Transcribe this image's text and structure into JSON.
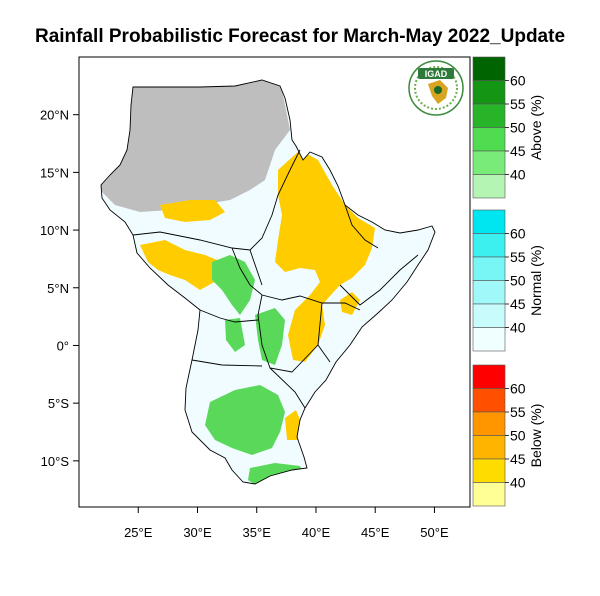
{
  "title": "Rainfall Probabilistic Forecast for March-May 2022_Update",
  "logo_text": "IGAD",
  "map": {
    "lon_range": [
      20,
      53
    ],
    "lat_range": [
      -14,
      25
    ],
    "x_ticks": [
      {
        "value": 25,
        "label": "25°E"
      },
      {
        "value": 30,
        "label": "30°E"
      },
      {
        "value": 35,
        "label": "35°E"
      },
      {
        "value": 40,
        "label": "40°E"
      },
      {
        "value": 45,
        "label": "45°E"
      },
      {
        "value": 50,
        "label": "50°E"
      }
    ],
    "y_ticks": [
      {
        "value": 20,
        "label": "20°N"
      },
      {
        "value": 15,
        "label": "15°N"
      },
      {
        "value": 10,
        "label": "10°N"
      },
      {
        "value": 5,
        "label": "5°N"
      },
      {
        "value": 0,
        "label": "0°"
      },
      {
        "value": -5,
        "label": "5°S"
      },
      {
        "value": -10,
        "label": "10°S"
      }
    ]
  },
  "colors": {
    "dry_season": "#bebebe",
    "climatology": "#f0fcff",
    "above_45": "#5ad85a",
    "above_50": "#3cc83c",
    "below_45": "#ffcc00",
    "below_50": "#ffb400"
  },
  "colorbars": [
    {
      "title": "Above (%)",
      "levels": [
        "40",
        "45",
        "50",
        "55",
        "60"
      ],
      "colors": [
        "#b4f5b4",
        "#78eb78",
        "#50dc50",
        "#28b428",
        "#149614",
        "#006400"
      ]
    },
    {
      "title": "Normal (%)",
      "levels": [
        "40",
        "45",
        "50",
        "55",
        "60"
      ],
      "colors": [
        "#f0ffff",
        "#c8fcfc",
        "#a0f8f8",
        "#78f5f5",
        "#3cf0f0",
        "#00e6f0"
      ]
    },
    {
      "title": "Below (%)",
      "levels": [
        "40",
        "45",
        "50",
        "55",
        "60"
      ],
      "colors": [
        "#ffff96",
        "#ffdc00",
        "#ffb400",
        "#ff9600",
        "#ff5000",
        "#ff0000"
      ]
    }
  ]
}
